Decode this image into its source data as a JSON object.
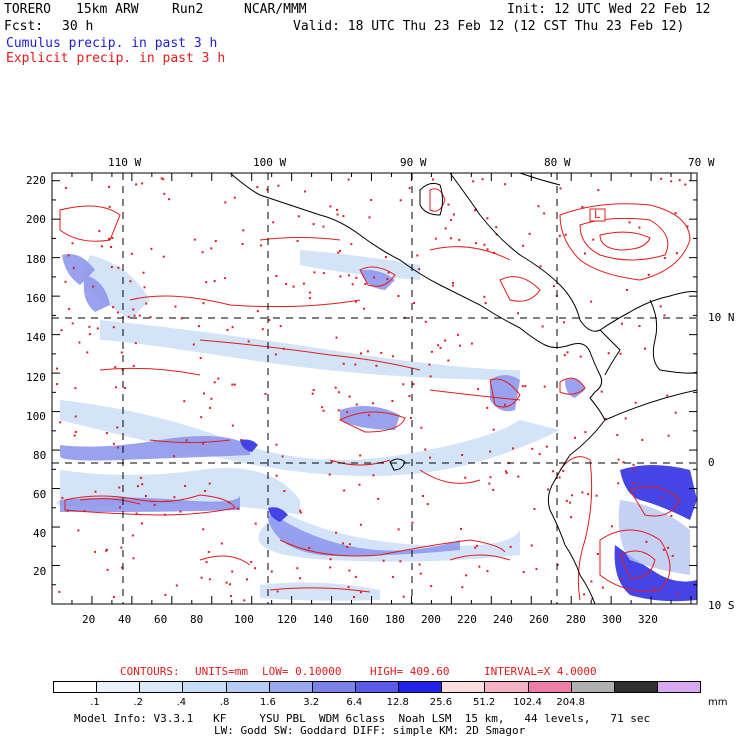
{
  "header": {
    "model": "TORERO",
    "resolution": "15km ARW",
    "run": "Run2",
    "org": "NCAR/MMM",
    "init": "Init: 12 UTC Wed 22 Feb 12",
    "fcst_label": "Fcst:",
    "fcst_value": "30 h",
    "valid": "Valid: 18 UTC Thu 23 Feb 12 (12 CST Thu 23 Feb 12)",
    "legend_cumulus": "Cumulus precip. in past 3 h",
    "legend_explicit": "Explicit precip. in past 3 h"
  },
  "axes": {
    "top_lon": [
      "110 W",
      "100 W",
      "90 W",
      "80 W",
      "70 W"
    ],
    "left_y": [
      "220",
      "200",
      "180",
      "160",
      "140",
      "120",
      "100",
      "80",
      "60",
      "40",
      "20"
    ],
    "bottom_x": [
      "20",
      "40",
      "60",
      "80",
      "100",
      "120",
      "140",
      "160",
      "180",
      "200",
      "220",
      "240",
      "260",
      "280",
      "300",
      "320"
    ],
    "right_lat": [
      "10 N",
      "0",
      "10 S"
    ]
  },
  "map_labels": {
    "low_marker": "L"
  },
  "contour_info": {
    "contours": "CONTOURS:",
    "units": "UNITS=mm",
    "low": "LOW= 0.10000",
    "high": "HIGH= 409.60",
    "interval": "INTERVAL=X 4.0000"
  },
  "colorbar": {
    "colors": [
      "#ffffff",
      "#eaf2fb",
      "#dbeaf8",
      "#c6def6",
      "#b5cdf3",
      "#9aa8ee",
      "#7c82ea",
      "#5a5ce6",
      "#2222e8",
      "#fbdede",
      "#f7b3c6",
      "#ee7ea8",
      "#b0b0b0",
      "#303030",
      "#d8a8f0"
    ],
    "labels": [
      ".1",
      ".2",
      ".4",
      ".8",
      "1.6",
      "3.2",
      "6.4",
      "12.8",
      "25.6",
      "51.2",
      "102.4",
      "204.8"
    ],
    "unit": "mm"
  },
  "footer": {
    "line1": "Model Info: V3.3.1   KF     YSU PBL  WDM 6class  Noah LSM  15 km,   44 levels,   71 sec",
    "line2": "LW: Godd SW: Goddard DIFF: simple KM: 2D Smagor"
  }
}
